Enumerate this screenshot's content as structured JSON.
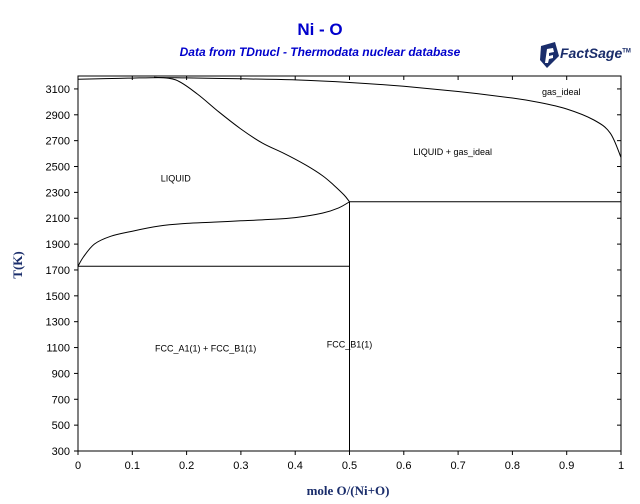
{
  "header": {
    "title": "Ni - O",
    "subtitle": "Data from TDnucl - Thermodata nuclear database",
    "logo_text": "FactSage",
    "logo_mark": "TM"
  },
  "colors": {
    "title": "#0000cc",
    "axis_label": "#1a2d6b",
    "curves": "#000000",
    "background": "#ffffff"
  },
  "chart_data": {
    "type": "line",
    "title": "Ni - O",
    "subtitle": "Data from TDnucl - Thermodata nuclear database",
    "xlabel": "mole O/(Ni+O)",
    "ylabel": "T(K)",
    "xlim": [
      0,
      1
    ],
    "ylim": [
      300,
      3200
    ],
    "xticks": [
      0,
      0.1,
      0.2,
      0.3,
      0.4,
      0.5,
      0.6,
      0.7,
      0.8,
      0.9,
      1
    ],
    "xtick_labels": [
      "0",
      "0.1",
      "0.2",
      "0.3",
      "0.4",
      "0.5",
      "0.6",
      "0.7",
      "0.8",
      "0.9",
      "1"
    ],
    "yticks": [
      300,
      500,
      700,
      900,
      1100,
      1300,
      1500,
      1700,
      1900,
      2100,
      2300,
      2500,
      2700,
      2900,
      3100
    ],
    "ytick_labels": [
      "300",
      "500",
      "700",
      "900",
      "1100",
      "1300",
      "1500",
      "1700",
      "1900",
      "2100",
      "2300",
      "2500",
      "2700",
      "2900",
      "3100"
    ],
    "grid": false,
    "series": [
      {
        "id": "gas-liquid-boundary",
        "x": [
          0,
          0.05,
          0.1,
          0.15,
          0.2,
          0.3,
          0.4,
          0.5,
          0.6,
          0.7,
          0.8,
          0.85,
          0.9,
          0.95,
          0.98,
          1
        ],
        "y": [
          3175,
          3180,
          3184,
          3188,
          3185,
          3178,
          3170,
          3150,
          3120,
          3080,
          3030,
          2995,
          2945,
          2860,
          2760,
          2570
        ]
      },
      {
        "id": "liquid-upper-boundary",
        "x": [
          0.14,
          0.18,
          0.22,
          0.26,
          0.3,
          0.34,
          0.38,
          0.42,
          0.45,
          0.47,
          0.49,
          0.5
        ],
        "y": [
          3190,
          3170,
          3060,
          2920,
          2790,
          2680,
          2600,
          2510,
          2430,
          2360,
          2280,
          2227
        ]
      },
      {
        "id": "liquidus-fcc",
        "x": [
          0,
          0.01,
          0.03,
          0.06,
          0.1,
          0.15,
          0.2,
          0.25,
          0.3,
          0.35,
          0.4,
          0.45,
          0.48,
          0.5
        ],
        "y": [
          1728,
          1800,
          1900,
          1960,
          2000,
          2040,
          2060,
          2070,
          2080,
          2090,
          2105,
          2140,
          2180,
          2227
        ]
      },
      {
        "id": "monotectic-isotherm",
        "x": [
          0.5,
          1
        ],
        "y": [
          2227,
          2227
        ]
      },
      {
        "id": "eutectic-isotherm",
        "x": [
          0,
          0.5
        ],
        "y": [
          1728,
          1728
        ]
      },
      {
        "id": "nio-line-compound",
        "x": [
          0.5,
          0.5
        ],
        "y": [
          300,
          2227
        ]
      }
    ],
    "annotations": [
      {
        "id": "gas-ideal",
        "text": "gas_ideal",
        "x": 0.89,
        "y": 3055
      },
      {
        "id": "liquid-gas",
        "text": "LIQUID + gas_ideal",
        "x": 0.69,
        "y": 2590
      },
      {
        "id": "liquid",
        "text": "LIQUID",
        "x": 0.18,
        "y": 2383
      },
      {
        "id": "fcc-two-phase",
        "text": "FCC_A1(1) + FCC_B1(1)",
        "x": 0.235,
        "y": 1070
      },
      {
        "id": "fcc-b1",
        "text": "FCC_B1(1)",
        "x": 0.5,
        "y": 1100
      }
    ]
  }
}
